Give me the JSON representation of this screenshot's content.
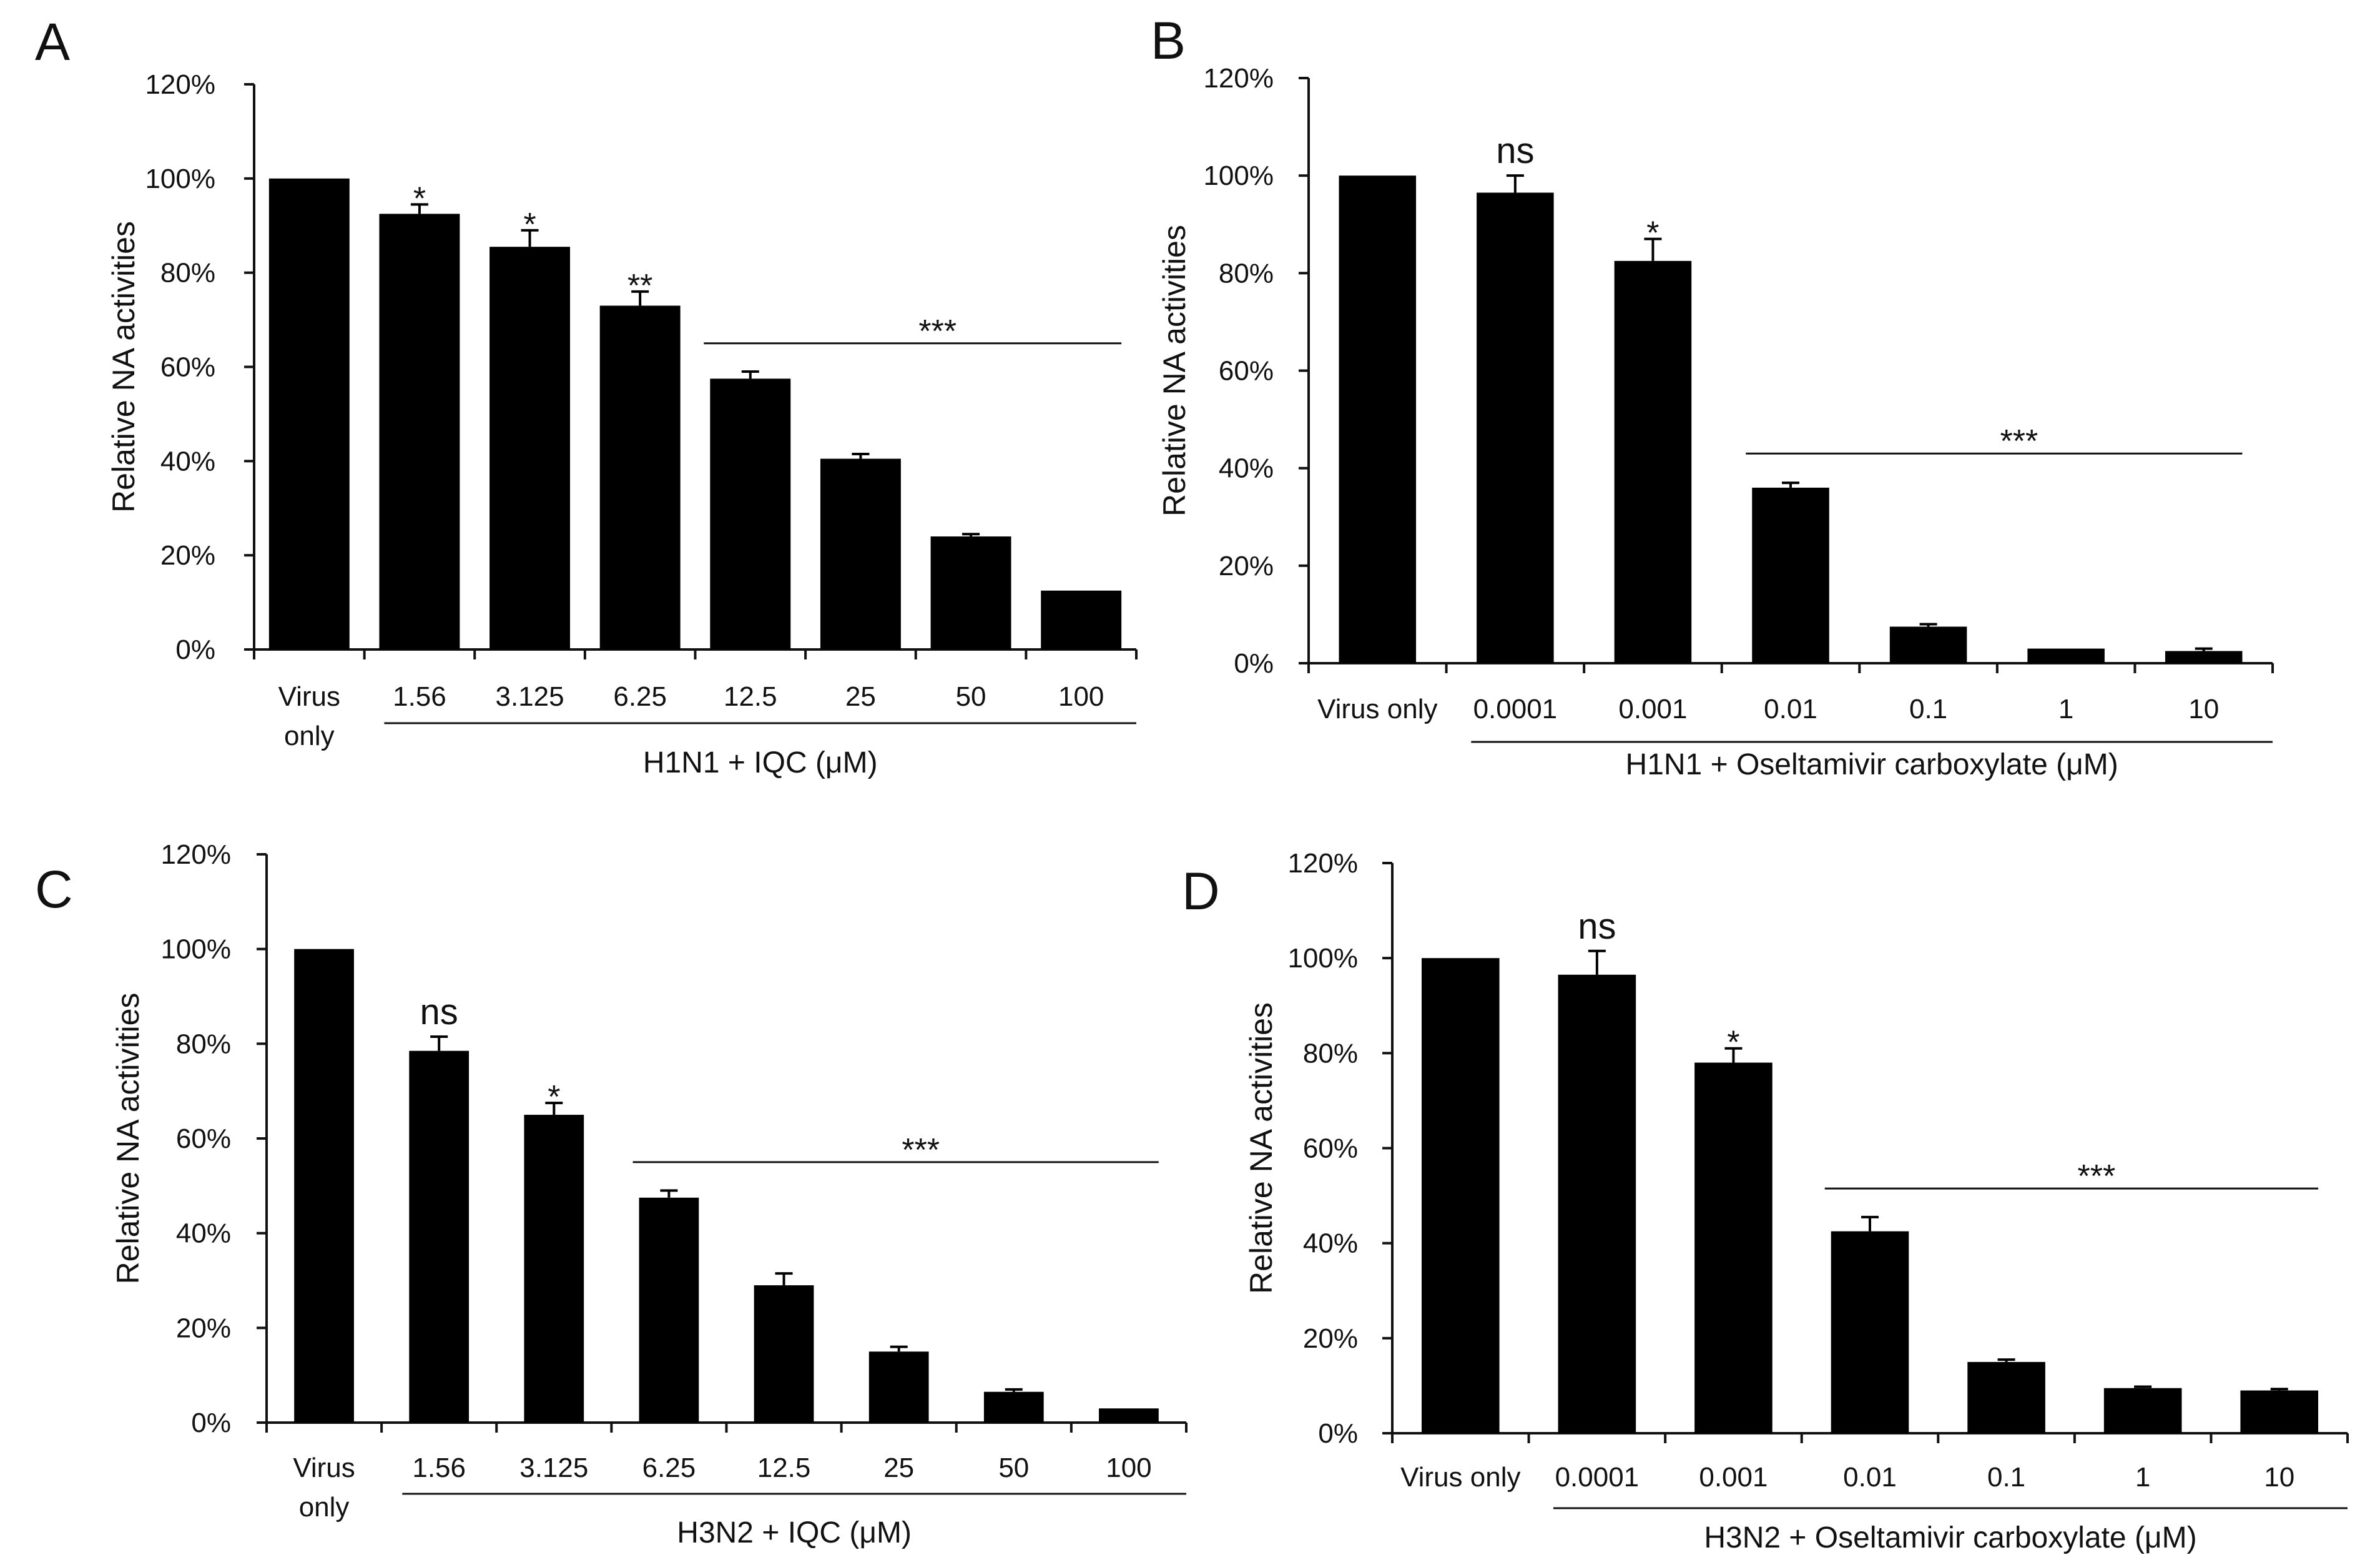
{
  "chart_data": [
    {
      "panel": "A",
      "type": "bar",
      "ylabel": "Relative NA activities",
      "ylim": [
        0,
        120
      ],
      "yticks": [
        "0%",
        "20%",
        "40%",
        "60%",
        "80%",
        "100%",
        "120%"
      ],
      "categories": [
        [
          "Virus",
          "only"
        ],
        [
          "1.56"
        ],
        [
          "3.125"
        ],
        [
          "6.25"
        ],
        [
          "12.5"
        ],
        [
          "25"
        ],
        [
          "50"
        ],
        [
          "100"
        ]
      ],
      "values": [
        100,
        92.5,
        85.5,
        73,
        57.5,
        40.5,
        24,
        12.5
      ],
      "errors": [
        0,
        2,
        3.5,
        3,
        1.5,
        1,
        0.5,
        0
      ],
      "annotations": [
        "",
        "*",
        "*",
        "**",
        "",
        "",
        "",
        ""
      ],
      "bracket": {
        "label": "***",
        "from": 4,
        "to": 7
      },
      "group_label": "H1N1 + IQC (μM)",
      "group_from": 1
    },
    {
      "panel": "B",
      "type": "bar",
      "ylabel": "Relative NA activities",
      "ylim": [
        0,
        120
      ],
      "yticks": [
        "0%",
        "20%",
        "40%",
        "60%",
        "80%",
        "100%",
        "120%"
      ],
      "categories": [
        [
          "Virus only"
        ],
        [
          "0.0001"
        ],
        [
          "0.001"
        ],
        [
          "0.01"
        ],
        [
          "0.1"
        ],
        [
          "1"
        ],
        [
          "10"
        ]
      ],
      "values": [
        100,
        96.5,
        82.5,
        36,
        7.5,
        3,
        2.5
      ],
      "errors": [
        0,
        3.5,
        4.5,
        1,
        0.5,
        0,
        0.5
      ],
      "annotations": [
        "",
        "ns",
        "*",
        "",
        "",
        "",
        ""
      ],
      "bracket": {
        "label": "***",
        "from": 3,
        "to": 6
      },
      "group_label": "H1N1 + Oseltamivir carboxylate (μM)",
      "group_from": 1
    },
    {
      "panel": "C",
      "type": "bar",
      "ylabel": "Relative NA activities",
      "ylim": [
        0,
        120
      ],
      "yticks": [
        "0%",
        "20%",
        "40%",
        "60%",
        "80%",
        "100%",
        "120%"
      ],
      "categories": [
        [
          "Virus",
          "only"
        ],
        [
          "1.56"
        ],
        [
          "3.125"
        ],
        [
          "6.25"
        ],
        [
          "12.5"
        ],
        [
          "25"
        ],
        [
          "50"
        ],
        [
          "100"
        ]
      ],
      "values": [
        100,
        78.5,
        65,
        47.5,
        29,
        15,
        6.5,
        3
      ],
      "errors": [
        0,
        3,
        2.5,
        1.5,
        2.5,
        1,
        0.5,
        0
      ],
      "annotations": [
        "",
        "ns",
        "*",
        "",
        "",
        "",
        "",
        ""
      ],
      "bracket": {
        "label": "***",
        "from": 3,
        "to": 7
      },
      "group_label": "H3N2 + IQC (μM)",
      "group_from": 1
    },
    {
      "panel": "D",
      "type": "bar",
      "ylabel": "Relative NA activities",
      "ylim": [
        0,
        120
      ],
      "yticks": [
        "0%",
        "20%",
        "40%",
        "60%",
        "80%",
        "100%",
        "120%"
      ],
      "categories": [
        [
          "Virus only"
        ],
        [
          "0.0001"
        ],
        [
          "0.001"
        ],
        [
          "0.01"
        ],
        [
          "0.1"
        ],
        [
          "1"
        ],
        [
          "10"
        ]
      ],
      "values": [
        100,
        96.5,
        78,
        42.5,
        15,
        9.5,
        9
      ],
      "errors": [
        0,
        5,
        3,
        3,
        0.5,
        0.3,
        0.3
      ],
      "annotations": [
        "",
        "ns",
        "*",
        "",
        "",
        "",
        ""
      ],
      "bracket": {
        "label": "***",
        "from": 3,
        "to": 6
      },
      "group_label": "H3N2 + Oseltamivir carboxylate (μM)",
      "group_from": 1
    }
  ]
}
